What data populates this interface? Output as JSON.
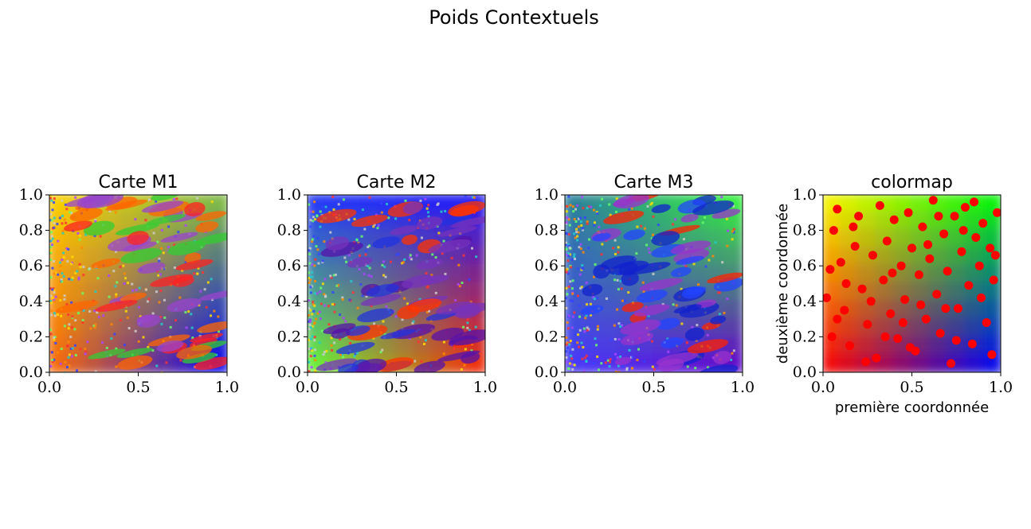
{
  "figure": {
    "suptitle": "Poids Contextuels"
  },
  "chart_data": [
    {
      "type": "heatmap",
      "title": "Carte M1",
      "xlabel": "",
      "ylabel": "",
      "xlim": [
        0.0,
        1.0
      ],
      "ylim": [
        0.0,
        1.0
      ],
      "xticks": [
        "0.0",
        "0.5",
        "1.0"
      ],
      "yticks": [
        "0.0",
        "0.2",
        "0.4",
        "0.6",
        "0.8",
        "1.0"
      ],
      "grid": false,
      "corner_colors": {
        "bottom_left": "#ff6a00",
        "top_left": "#ffd400",
        "top_right": "#7fc040",
        "bottom_right": "#0000ff"
      }
    },
    {
      "type": "heatmap",
      "title": "Carte M2",
      "xlabel": "",
      "ylabel": "",
      "xlim": [
        0.0,
        1.0
      ],
      "ylim": [
        0.0,
        1.0
      ],
      "xticks": [
        "0.0",
        "0.5",
        "1.0"
      ],
      "yticks": [
        "0.0",
        "0.2",
        "0.4",
        "0.6",
        "0.8",
        "1.0"
      ],
      "grid": false,
      "corner_colors": {
        "bottom_left": "#66ff33",
        "top_left": "#2233ff",
        "top_right": "#1a1aff",
        "bottom_right": "#ff2a00"
      }
    },
    {
      "type": "heatmap",
      "title": "Carte M3",
      "xlabel": "",
      "ylabel": "",
      "xlim": [
        0.0,
        1.0
      ],
      "ylim": [
        0.0,
        1.0
      ],
      "xticks": [
        "0.0",
        "0.5",
        "1.0"
      ],
      "yticks": [
        "0.0",
        "0.2",
        "0.4",
        "0.6",
        "0.8",
        "1.0"
      ],
      "grid": false,
      "corner_colors": {
        "bottom_left": "#4a3aff",
        "top_left": "#2a7f9a",
        "top_right": "#33ff33",
        "bottom_right": "#6600cc"
      }
    },
    {
      "type": "scatter",
      "title": "colormap",
      "xlabel": "première coordonnée",
      "ylabel": "deuxième coordonnée",
      "xlim": [
        0.0,
        1.0
      ],
      "ylim": [
        0.0,
        1.0
      ],
      "xticks": [
        "0.0",
        "0.5",
        "1.0"
      ],
      "yticks": [
        "0.0",
        "0.2",
        "0.4",
        "0.6",
        "0.8",
        "1.0"
      ],
      "grid": false,
      "marker_color": "#ff0000",
      "background_corner_colors": {
        "bottom_left": "#ff0000",
        "top_left": "#ffff00",
        "top_right": "#00ff00",
        "bottom_right": "#0000ff"
      },
      "series": [
        {
          "points": [
            [
              0.02,
              0.42
            ],
            [
              0.04,
              0.58
            ],
            [
              0.06,
              0.8
            ],
            [
              0.08,
              0.92
            ],
            [
              0.1,
              0.62
            ],
            [
              0.12,
              0.35
            ],
            [
              0.15,
              0.15
            ],
            [
              0.18,
              0.71
            ],
            [
              0.2,
              0.88
            ],
            [
              0.22,
              0.47
            ],
            [
              0.25,
              0.27
            ],
            [
              0.28,
              0.66
            ],
            [
              0.3,
              0.08
            ],
            [
              0.32,
              0.94
            ],
            [
              0.34,
              0.52
            ],
            [
              0.36,
              0.74
            ],
            [
              0.38,
              0.33
            ],
            [
              0.4,
              0.86
            ],
            [
              0.42,
              0.19
            ],
            [
              0.44,
              0.6
            ],
            [
              0.46,
              0.41
            ],
            [
              0.48,
              0.9
            ],
            [
              0.5,
              0.7
            ],
            [
              0.52,
              0.12
            ],
            [
              0.54,
              0.55
            ],
            [
              0.56,
              0.82
            ],
            [
              0.58,
              0.3
            ],
            [
              0.6,
              0.64
            ],
            [
              0.62,
              0.97
            ],
            [
              0.64,
              0.44
            ],
            [
              0.66,
              0.22
            ],
            [
              0.68,
              0.78
            ],
            [
              0.7,
              0.57
            ],
            [
              0.72,
              0.05
            ],
            [
              0.74,
              0.88
            ],
            [
              0.76,
              0.36
            ],
            [
              0.78,
              0.68
            ],
            [
              0.8,
              0.93
            ],
            [
              0.82,
              0.49
            ],
            [
              0.84,
              0.16
            ],
            [
              0.86,
              0.76
            ],
            [
              0.88,
              0.6
            ],
            [
              0.9,
              0.84
            ],
            [
              0.92,
              0.28
            ],
            [
              0.94,
              0.7
            ],
            [
              0.96,
              0.52
            ],
            [
              0.98,
              0.9
            ],
            [
              0.05,
              0.2
            ],
            [
              0.13,
              0.5
            ],
            [
              0.24,
              0.06
            ],
            [
              0.35,
              0.2
            ],
            [
              0.45,
              0.28
            ],
            [
              0.55,
              0.38
            ],
            [
              0.65,
              0.88
            ],
            [
              0.75,
              0.18
            ],
            [
              0.85,
              0.96
            ],
            [
              0.95,
              0.1
            ],
            [
              0.08,
              0.3
            ],
            [
              0.17,
              0.82
            ],
            [
              0.27,
              0.4
            ],
            [
              0.39,
              0.56
            ],
            [
              0.49,
              0.14
            ],
            [
              0.59,
              0.72
            ],
            [
              0.69,
              0.36
            ],
            [
              0.79,
              0.8
            ],
            [
              0.89,
              0.42
            ],
            [
              0.97,
              0.66
            ]
          ]
        }
      ]
    }
  ]
}
